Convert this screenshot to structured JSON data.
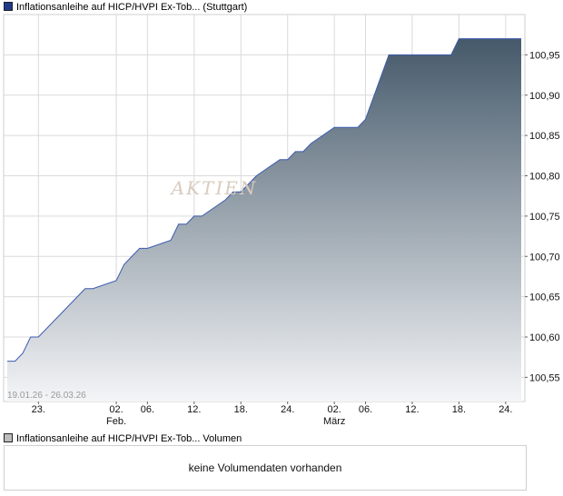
{
  "legend": {
    "price_label": "Inflationsanleihe auf HICP/HVPI Ex-Tob... (Stuttgart)",
    "volume_label": "Inflationsanleihe auf HICP/HVPI Ex-Tob... Volumen"
  },
  "watermark": "AKTIEN",
  "date_range": "19.01.26 - 26.03.26",
  "volume": {
    "message": "keine Volumendaten vorhanden"
  },
  "colors": {
    "line": "#3b5bb0",
    "fill_top": "#45596a",
    "fill_bottom": "#f4f5f7",
    "grid": "#dadada"
  },
  "chart_data": {
    "type": "area",
    "title": "",
    "xlabel": "",
    "ylabel": "",
    "x_range": [
      "2026-01-19",
      "2026-03-26"
    ],
    "ylim": [
      100.52,
      101.0
    ],
    "grid": true,
    "y_ticks": [
      "100,55",
      "100,60",
      "100,65",
      "100,70",
      "100,75",
      "100,80",
      "100,85",
      "100,90",
      "100,95"
    ],
    "x_ticks": [
      {
        "date": "2026-01-23",
        "label": "23.",
        "sub": ""
      },
      {
        "date": "2026-02-02",
        "label": "02.",
        "sub": "Feb."
      },
      {
        "date": "2026-02-06",
        "label": "06.",
        "sub": ""
      },
      {
        "date": "2026-02-12",
        "label": "12.",
        "sub": ""
      },
      {
        "date": "2026-02-18",
        "label": "18.",
        "sub": ""
      },
      {
        "date": "2026-02-24",
        "label": "24.",
        "sub": ""
      },
      {
        "date": "2026-03-02",
        "label": "02.",
        "sub": "März"
      },
      {
        "date": "2026-03-06",
        "label": "06.",
        "sub": ""
      },
      {
        "date": "2026-03-12",
        "label": "12.",
        "sub": ""
      },
      {
        "date": "2026-03-18",
        "label": "18.",
        "sub": ""
      },
      {
        "date": "2026-03-24",
        "label": "24.",
        "sub": ""
      }
    ],
    "series": [
      {
        "x": [
          "2026-01-19",
          "2026-01-20",
          "2026-01-21",
          "2026-01-22",
          "2026-01-23",
          "2026-01-26",
          "2026-01-27",
          "2026-01-28",
          "2026-01-29",
          "2026-01-30",
          "2026-02-02",
          "2026-02-03",
          "2026-02-04",
          "2026-02-05",
          "2026-02-06",
          "2026-02-09",
          "2026-02-10",
          "2026-02-11",
          "2026-02-12",
          "2026-02-13",
          "2026-02-16",
          "2026-02-17",
          "2026-02-18",
          "2026-02-19",
          "2026-02-20",
          "2026-02-23",
          "2026-02-24",
          "2026-02-25",
          "2026-02-26",
          "2026-02-27",
          "2026-03-02",
          "2026-03-03",
          "2026-03-04",
          "2026-03-05",
          "2026-03-06",
          "2026-03-09",
          "2026-03-10",
          "2026-03-11",
          "2026-03-12",
          "2026-03-13",
          "2026-03-16",
          "2026-03-17",
          "2026-03-18",
          "2026-03-19",
          "2026-03-20",
          "2026-03-23",
          "2026-03-24",
          "2026-03-25",
          "2026-03-26"
        ],
        "values": [
          100.57,
          100.57,
          100.58,
          100.6,
          100.6,
          100.63,
          100.64,
          100.65,
          100.66,
          100.66,
          100.67,
          100.69,
          100.7,
          100.71,
          100.71,
          100.72,
          100.74,
          100.74,
          100.75,
          100.75,
          100.77,
          100.78,
          100.78,
          100.79,
          100.8,
          100.82,
          100.82,
          100.83,
          100.83,
          100.84,
          100.86,
          100.86,
          100.86,
          100.86,
          100.87,
          100.95,
          100.95,
          100.95,
          100.95,
          100.95,
          100.95,
          100.95,
          100.97,
          100.97,
          100.97,
          100.97,
          100.97,
          100.97,
          100.97
        ]
      }
    ]
  }
}
